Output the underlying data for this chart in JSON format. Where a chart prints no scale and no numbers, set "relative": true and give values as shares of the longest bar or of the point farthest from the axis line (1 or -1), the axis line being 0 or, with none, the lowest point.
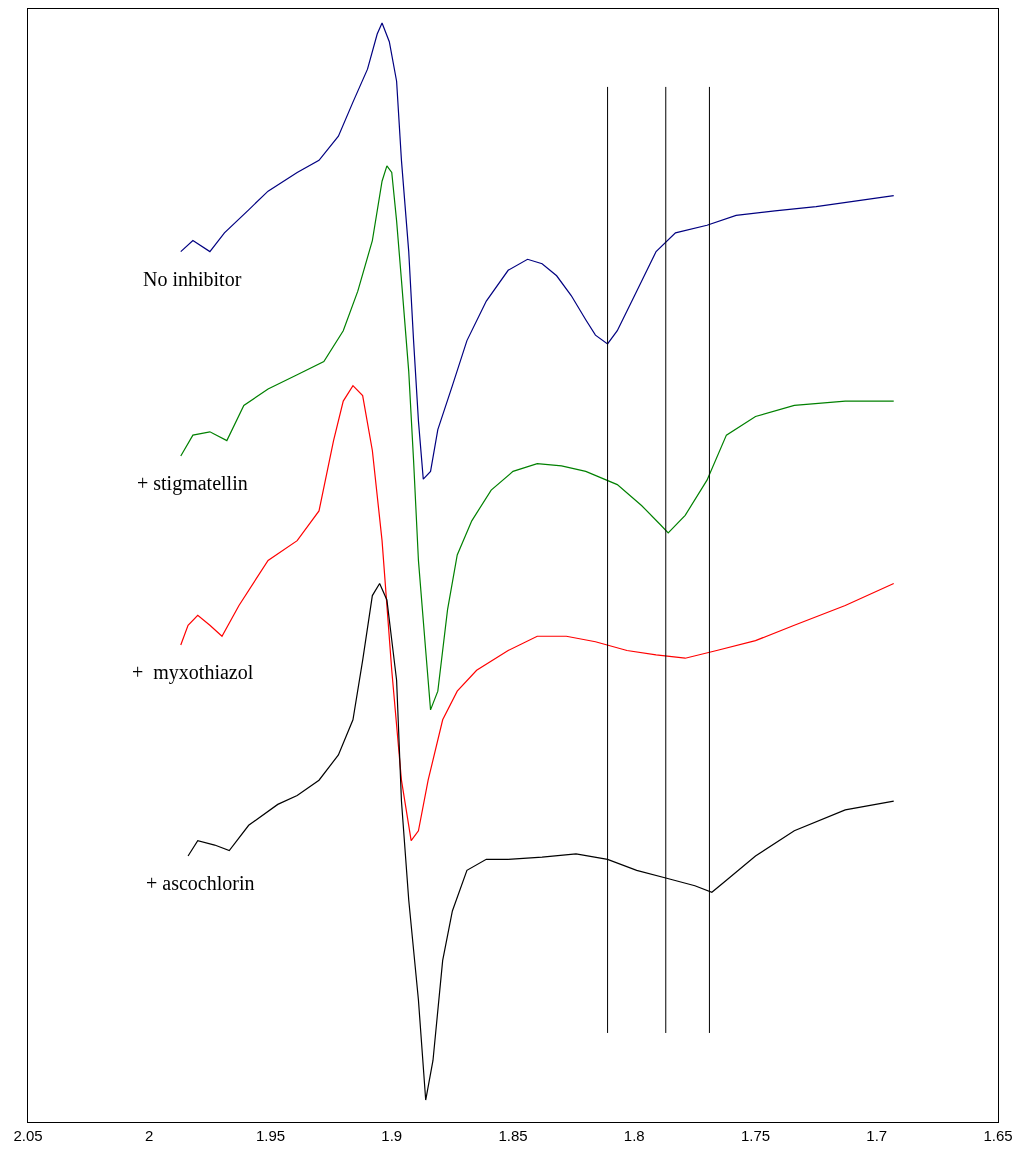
{
  "chart_data": {
    "type": "line",
    "relative": true,
    "legend": false,
    "marker": "none",
    "line_style": "solid",
    "xlim": [
      2.05,
      1.65
    ],
    "xticks": [
      2.05,
      2,
      1.95,
      1.9,
      1.85,
      1.8,
      1.75,
      1.7,
      1.65
    ],
    "ref_lines": [
      {
        "axis": "x",
        "value": 1.811,
        "color": "#000000"
      },
      {
        "axis": "x",
        "value": 1.787,
        "color": "#000000"
      },
      {
        "axis": "x",
        "value": 1.769,
        "color": "#000000"
      }
    ],
    "series": [
      {
        "name": "No inhibitor",
        "color": "#000080",
        "x": [
          1.987,
          1.982,
          1.975,
          1.969,
          1.959,
          1.951,
          1.939,
          1.93,
          1.922,
          1.916,
          1.91,
          1.906,
          1.904,
          1.901,
          1.898,
          1.896,
          1.893,
          1.891,
          1.889,
          1.887,
          1.884,
          1.881,
          1.875,
          1.869,
          1.861,
          1.852,
          1.844,
          1.838,
          1.832,
          1.826,
          1.82,
          1.816,
          1.811,
          1.807,
          1.799,
          1.791,
          1.783,
          1.77,
          1.758,
          1.742,
          1.725,
          1.709,
          1.693
        ],
        "values": [
          0.792,
          0.802,
          0.792,
          0.809,
          0.83,
          0.847,
          0.864,
          0.875,
          0.897,
          0.928,
          0.958,
          0.99,
          1.0,
          0.983,
          0.947,
          0.875,
          0.792,
          0.711,
          0.638,
          0.585,
          0.592,
          0.63,
          0.67,
          0.711,
          0.747,
          0.775,
          0.785,
          0.781,
          0.77,
          0.752,
          0.73,
          0.716,
          0.708,
          0.72,
          0.756,
          0.792,
          0.809,
          0.816,
          0.825,
          0.829,
          0.833,
          0.838,
          0.843
        ]
      },
      {
        "name": "+ stigmatellin",
        "color": "#008000",
        "x": [
          1.987,
          1.982,
          1.975,
          1.968,
          1.961,
          1.951,
          1.939,
          1.928,
          1.92,
          1.914,
          1.908,
          1.904,
          1.902,
          1.9,
          1.898,
          1.896,
          1.893,
          1.891,
          1.889,
          1.886,
          1.884,
          1.881,
          1.877,
          1.873,
          1.867,
          1.859,
          1.85,
          1.84,
          1.83,
          1.82,
          1.807,
          1.797,
          1.789,
          1.786,
          1.779,
          1.77,
          1.762,
          1.75,
          1.734,
          1.713,
          1.693
        ],
        "values": [
          0.606,
          0.625,
          0.628,
          0.62,
          0.652,
          0.667,
          0.68,
          0.692,
          0.72,
          0.756,
          0.802,
          0.856,
          0.87,
          0.864,
          0.82,
          0.766,
          0.683,
          0.602,
          0.511,
          0.429,
          0.375,
          0.392,
          0.466,
          0.516,
          0.547,
          0.575,
          0.592,
          0.599,
          0.597,
          0.592,
          0.58,
          0.561,
          0.543,
          0.536,
          0.552,
          0.584,
          0.625,
          0.642,
          0.652,
          0.656,
          0.656
        ]
      },
      {
        "name": "+  myxothiazol",
        "color": "#ff0000",
        "x": [
          1.987,
          1.984,
          1.98,
          1.975,
          1.97,
          1.963,
          1.951,
          1.939,
          1.93,
          1.924,
          1.92,
          1.916,
          1.912,
          1.908,
          1.904,
          1.9,
          1.896,
          1.892,
          1.889,
          1.885,
          1.879,
          1.873,
          1.865,
          1.852,
          1.84,
          1.828,
          1.816,
          1.803,
          1.791,
          1.779,
          1.766,
          1.75,
          1.734,
          1.713,
          1.693
        ],
        "values": [
          0.434,
          0.452,
          0.461,
          0.452,
          0.442,
          0.47,
          0.511,
          0.529,
          0.556,
          0.62,
          0.656,
          0.67,
          0.661,
          0.611,
          0.529,
          0.411,
          0.311,
          0.256,
          0.265,
          0.311,
          0.366,
          0.392,
          0.411,
          0.429,
          0.442,
          0.442,
          0.437,
          0.429,
          0.425,
          0.422,
          0.429,
          0.438,
          0.452,
          0.47,
          0.49
        ]
      },
      {
        "name": "+ ascochlorin",
        "color": "#000000",
        "x": [
          1.984,
          1.98,
          1.973,
          1.967,
          1.959,
          1.947,
          1.939,
          1.93,
          1.922,
          1.916,
          1.912,
          1.908,
          1.905,
          1.902,
          1.898,
          1.896,
          1.893,
          1.889,
          1.886,
          1.883,
          1.879,
          1.875,
          1.869,
          1.861,
          1.852,
          1.838,
          1.824,
          1.811,
          1.799,
          1.787,
          1.775,
          1.768,
          1.762,
          1.75,
          1.734,
          1.713,
          1.693
        ],
        "values": [
          0.242,
          0.256,
          0.252,
          0.247,
          0.27,
          0.289,
          0.297,
          0.311,
          0.334,
          0.366,
          0.42,
          0.479,
          0.49,
          0.475,
          0.402,
          0.292,
          0.202,
          0.111,
          0.02,
          0.056,
          0.147,
          0.192,
          0.229,
          0.239,
          0.239,
          0.241,
          0.244,
          0.239,
          0.229,
          0.222,
          0.215,
          0.209,
          0.22,
          0.242,
          0.265,
          0.284,
          0.292
        ]
      }
    ]
  }
}
